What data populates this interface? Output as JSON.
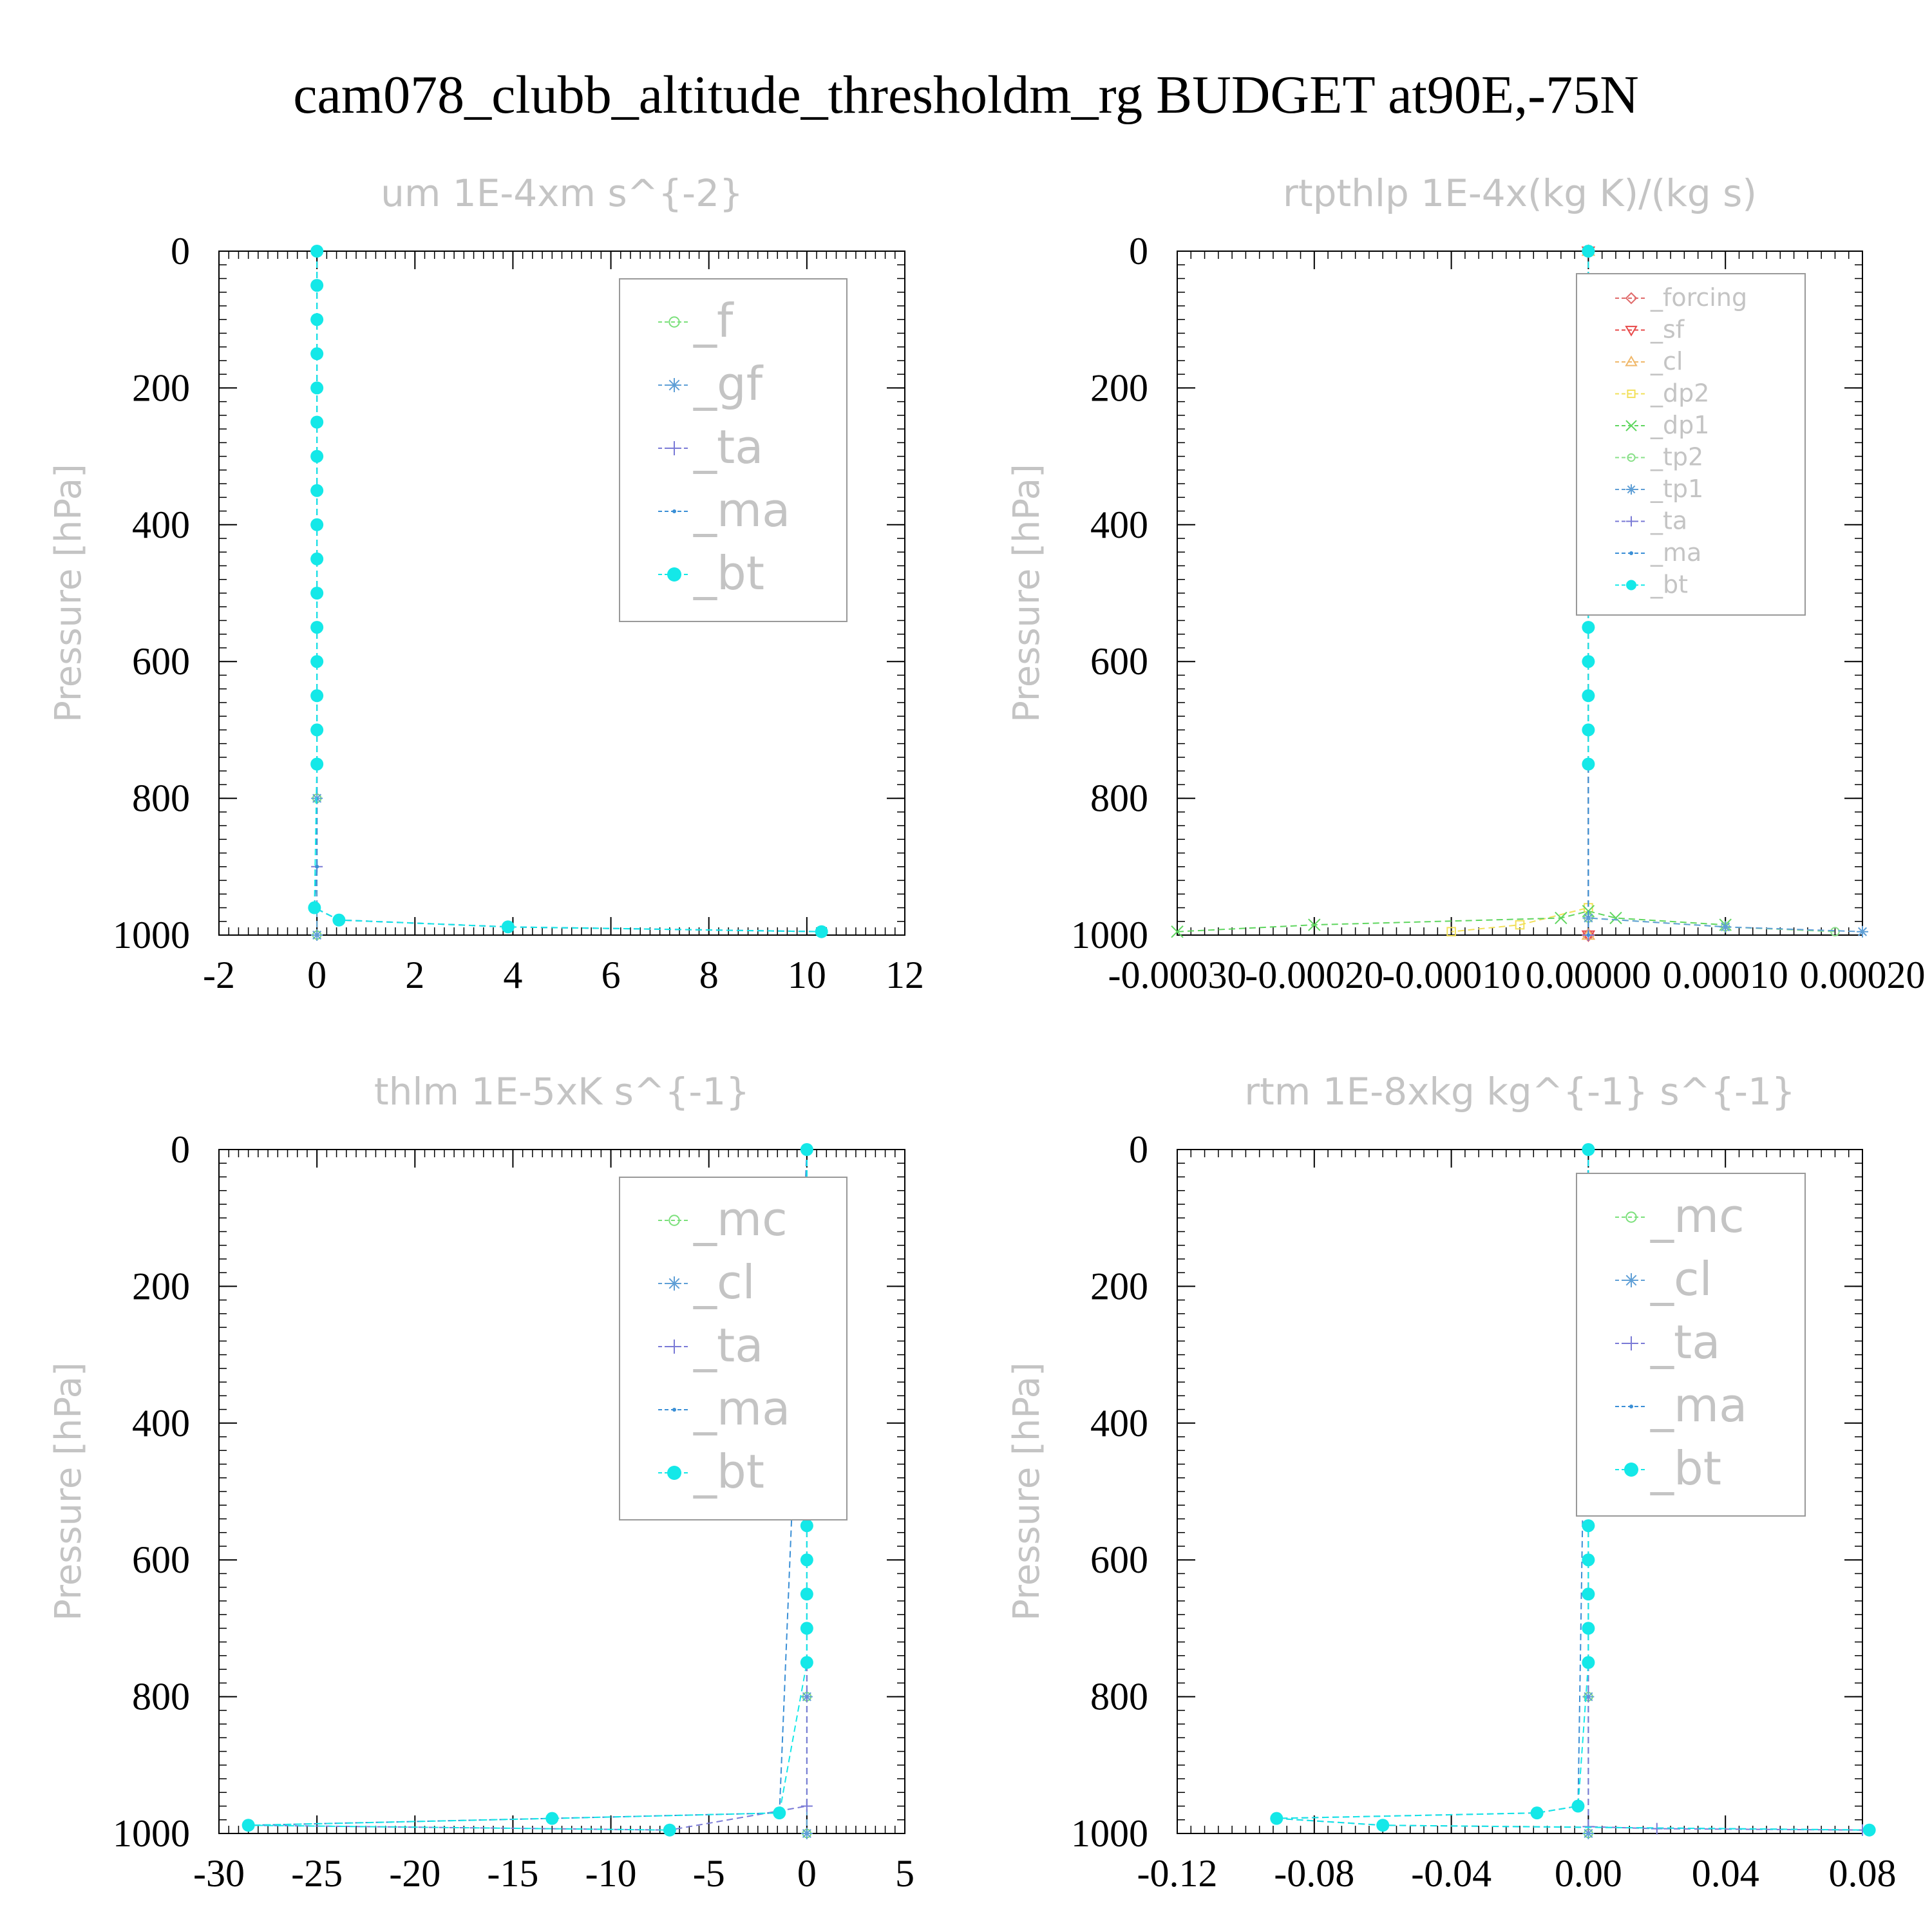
{
  "figure": {
    "title": "cam078_clubb_altitude_thresholdm_rg  BUDGET at90E,-75N"
  },
  "chart_data": [
    {
      "type": "line",
      "title": "um   1E-4xm s^{-2}",
      "ylabel": "Pressure [hPa]",
      "xlim": [
        -2,
        12
      ],
      "ylim": [
        1000,
        0
      ],
      "y_reversed": true,
      "xticks": [
        "-2",
        "0",
        "2",
        "4",
        "6",
        "8",
        "10",
        "12"
      ],
      "yticks": [
        "0",
        "200",
        "400",
        "600",
        "800",
        "1000"
      ],
      "legend_placement": "top-right",
      "series": [
        {
          "name": "_f",
          "color": "#7be07b",
          "marker": "circle-open",
          "x": [
            0,
            0,
            0,
            0
          ],
          "y": [
            0,
            400,
            800,
            1000
          ]
        },
        {
          "name": "_gf",
          "color": "#5f9fd6",
          "marker": "asterisk",
          "x": [
            0,
            0,
            0,
            0
          ],
          "y": [
            0,
            400,
            800,
            1000
          ]
        },
        {
          "name": "_ta",
          "color": "#7a7ad6",
          "marker": "plus",
          "x": [
            0,
            0,
            -0.05,
            0.45,
            3.9,
            10.3
          ],
          "y": [
            0,
            900,
            960,
            978,
            988,
            995
          ]
        },
        {
          "name": "_ma",
          "color": "#3a8fd6",
          "marker": "dot",
          "x": [
            0,
            0,
            -0.05,
            0.45,
            3.9,
            10.3
          ],
          "y": [
            0,
            900,
            960,
            978,
            988,
            995
          ]
        },
        {
          "name": "_bt",
          "color": "#14e8e8",
          "marker": "filled-circle",
          "x": [
            0,
            0,
            0,
            0,
            0,
            0,
            0,
            0,
            0,
            0,
            0,
            0,
            0,
            0,
            0,
            0,
            -0.05,
            0.45,
            3.9,
            10.3
          ],
          "y": [
            0,
            50,
            100,
            150,
            200,
            250,
            300,
            350,
            400,
            450,
            500,
            550,
            600,
            650,
            700,
            750,
            960,
            978,
            988,
            995
          ]
        }
      ]
    },
    {
      "type": "line",
      "title": "rtpthlp   1E-4x(kg K)/(kg s)",
      "ylabel": "Pressure [hPa]",
      "xlim": [
        -0.0003,
        0.0002
      ],
      "ylim": [
        1000,
        0
      ],
      "y_reversed": true,
      "xticks": [
        "-0.00030",
        "-0.00020",
        "-0.00010",
        "0.00000",
        "0.00010",
        "0.00020"
      ],
      "yticks": [
        "0",
        "200",
        "400",
        "600",
        "800",
        "1000"
      ],
      "legend_placement": "top-right",
      "series": [
        {
          "name": "_forcing",
          "color": "#e06a6a",
          "marker": "diamond",
          "x": [
            0,
            0,
            0
          ],
          "y": [
            0,
            500,
            1000
          ]
        },
        {
          "name": "_sf",
          "color": "#e84a4a",
          "marker": "triangle-down",
          "x": [
            0,
            0,
            0
          ],
          "y": [
            0,
            500,
            1000
          ]
        },
        {
          "name": "_cl",
          "color": "#f0b86a",
          "marker": "triangle-up",
          "x": [
            0,
            0,
            0
          ],
          "y": [
            0,
            500,
            1000
          ]
        },
        {
          "name": "_dp2",
          "color": "#f2e05a",
          "marker": "square",
          "x": [
            0,
            0,
            -5e-05,
            -0.0001
          ],
          "y": [
            0,
            960,
            985,
            995
          ]
        },
        {
          "name": "_dp1",
          "color": "#5fd65f",
          "marker": "x",
          "x": [
            -0.0003,
            -0.0002,
            -2e-05,
            0,
            2e-05,
            0.0001
          ],
          "y": [
            995,
            985,
            975,
            965,
            975,
            985
          ]
        },
        {
          "name": "_tp2",
          "color": "#8ae08a",
          "marker": "circle-open",
          "x": [
            0,
            0,
            0.0001,
            0.00018
          ],
          "y": [
            0,
            975,
            988,
            995
          ]
        },
        {
          "name": "_tp1",
          "color": "#5f9fd6",
          "marker": "asterisk",
          "x": [
            0,
            0,
            0.0001,
            0.0002
          ],
          "y": [
            0,
            975,
            988,
            995
          ]
        },
        {
          "name": "_ta",
          "color": "#7a7ad6",
          "marker": "plus",
          "x": [
            0,
            0,
            0
          ],
          "y": [
            0,
            500,
            1000
          ]
        },
        {
          "name": "_ma",
          "color": "#3a8fd6",
          "marker": "dot",
          "x": [
            0,
            0,
            0
          ],
          "y": [
            0,
            500,
            1000
          ]
        },
        {
          "name": "_bt",
          "color": "#14e8e8",
          "marker": "filled-circle",
          "x": [
            0,
            0,
            0,
            0,
            0,
            0,
            0,
            0,
            0,
            0,
            0,
            0,
            0,
            0,
            0,
            0
          ],
          "y": [
            0,
            50,
            100,
            150,
            200,
            250,
            300,
            350,
            400,
            450,
            500,
            550,
            600,
            650,
            700,
            750
          ]
        }
      ]
    },
    {
      "type": "line",
      "title": "thlm   1E-5xK s^{-1}",
      "ylabel": "Pressure [hPa]",
      "xlim": [
        -30,
        5
      ],
      "ylim": [
        1000,
        0
      ],
      "y_reversed": true,
      "xticks": [
        "-30",
        "-25",
        "-20",
        "-15",
        "-10",
        "-5",
        "0",
        "5"
      ],
      "yticks": [
        "0",
        "200",
        "400",
        "600",
        "800",
        "1000"
      ],
      "legend_placement": "top-right",
      "series": [
        {
          "name": "_mc",
          "color": "#7be07b",
          "marker": "circle-open",
          "x": [
            0,
            0,
            0,
            0
          ],
          "y": [
            0,
            400,
            800,
            1000
          ]
        },
        {
          "name": "_cl",
          "color": "#5f9fd6",
          "marker": "asterisk",
          "x": [
            0,
            0,
            0,
            0
          ],
          "y": [
            0,
            400,
            800,
            1000
          ]
        },
        {
          "name": "_ta",
          "color": "#7a7ad6",
          "marker": "plus",
          "x": [
            0,
            0,
            -7,
            -28.5
          ],
          "y": [
            0,
            960,
            995,
            988
          ]
        },
        {
          "name": "_ma",
          "color": "#3a8fd6",
          "marker": "dot",
          "x": [
            0,
            -1.4,
            -13,
            -28.5
          ],
          "y": [
            0,
            970,
            978,
            988
          ]
        },
        {
          "name": "_bt",
          "color": "#14e8e8",
          "marker": "filled-circle",
          "x": [
            0,
            0,
            0,
            0,
            0,
            0,
            0,
            0,
            0,
            0,
            0,
            0,
            0,
            0,
            0,
            0,
            -1.4,
            -13,
            -28.5,
            -7
          ],
          "y": [
            0,
            50,
            100,
            150,
            200,
            250,
            300,
            350,
            400,
            450,
            500,
            550,
            600,
            650,
            700,
            750,
            970,
            978,
            988,
            995
          ]
        }
      ]
    },
    {
      "type": "line",
      "title": "rtm   1E-8xkg kg^{-1} s^{-1}",
      "ylabel": "Pressure [hPa]",
      "xlim": [
        -0.12,
        0.08
      ],
      "ylim": [
        1000,
        0
      ],
      "y_reversed": true,
      "xticks": [
        "-0.12",
        "-0.08",
        "-0.04",
        "0.00",
        "0.04",
        "0.08"
      ],
      "yticks": [
        "0",
        "200",
        "400",
        "600",
        "800",
        "1000"
      ],
      "legend_placement": "top-right",
      "series": [
        {
          "name": "_mc",
          "color": "#7be07b",
          "marker": "circle-open",
          "x": [
            0,
            0,
            0,
            0
          ],
          "y": [
            0,
            400,
            800,
            1000
          ]
        },
        {
          "name": "_cl",
          "color": "#5f9fd6",
          "marker": "asterisk",
          "x": [
            0,
            0,
            0,
            0
          ],
          "y": [
            0,
            400,
            800,
            1000
          ]
        },
        {
          "name": "_ta",
          "color": "#7a7ad6",
          "marker": "plus",
          "x": [
            0,
            0,
            0.02,
            0.08
          ],
          "y": [
            0,
            990,
            993,
            995
          ]
        },
        {
          "name": "_ma",
          "color": "#3a8fd6",
          "marker": "dot",
          "x": [
            0,
            -0.003,
            -0.015,
            -0.091,
            -0.06,
            0.082
          ],
          "y": [
            0,
            960,
            970,
            978,
            988,
            995
          ]
        },
        {
          "name": "_bt",
          "color": "#14e8e8",
          "marker": "filled-circle",
          "x": [
            0,
            0,
            0,
            0,
            0,
            0,
            0,
            0,
            0,
            0,
            0,
            0,
            0,
            0,
            0,
            0,
            -0.003,
            -0.015,
            -0.091,
            -0.06,
            0.082
          ],
          "y": [
            0,
            50,
            100,
            150,
            200,
            250,
            300,
            350,
            400,
            450,
            500,
            550,
            600,
            650,
            700,
            750,
            960,
            970,
            978,
            988,
            995
          ]
        }
      ]
    }
  ]
}
